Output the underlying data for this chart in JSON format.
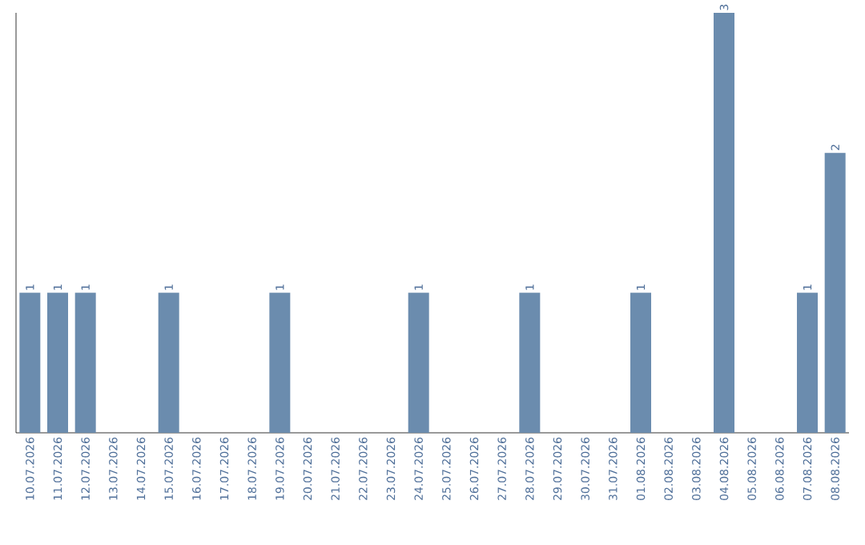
{
  "chart_data": {
    "type": "bar",
    "categories": [
      "10.07.2026",
      "11.07.2026",
      "12.07.2026",
      "13.07.2026",
      "14.07.2026",
      "15.07.2026",
      "16.07.2026",
      "17.07.2026",
      "18.07.2026",
      "19.07.2026",
      "20.07.2026",
      "21.07.2026",
      "22.07.2026",
      "23.07.2026",
      "24.07.2026",
      "25.07.2026",
      "26.07.2026",
      "27.07.2026",
      "28.07.2026",
      "29.07.2026",
      "30.07.2026",
      "31.07.2026",
      "01.08.2026",
      "02.08.2026",
      "03.08.2026",
      "04.08.2026",
      "05.08.2026",
      "06.08.2026",
      "07.08.2026",
      "08.08.2026"
    ],
    "values": [
      1,
      1,
      1,
      0,
      0,
      1,
      0,
      0,
      0,
      1,
      0,
      0,
      0,
      0,
      1,
      0,
      0,
      0,
      1,
      0,
      0,
      0,
      1,
      0,
      0,
      3,
      0,
      0,
      1,
      2
    ],
    "value_labels": [
      "1",
      "1",
      "1",
      null,
      null,
      "1",
      null,
      null,
      null,
      "1",
      null,
      null,
      null,
      null,
      "1",
      null,
      null,
      null,
      "1",
      null,
      null,
      null,
      "1",
      null,
      null,
      "3",
      null,
      null,
      "1",
      "2"
    ],
    "color": "#6b8cae"
  }
}
